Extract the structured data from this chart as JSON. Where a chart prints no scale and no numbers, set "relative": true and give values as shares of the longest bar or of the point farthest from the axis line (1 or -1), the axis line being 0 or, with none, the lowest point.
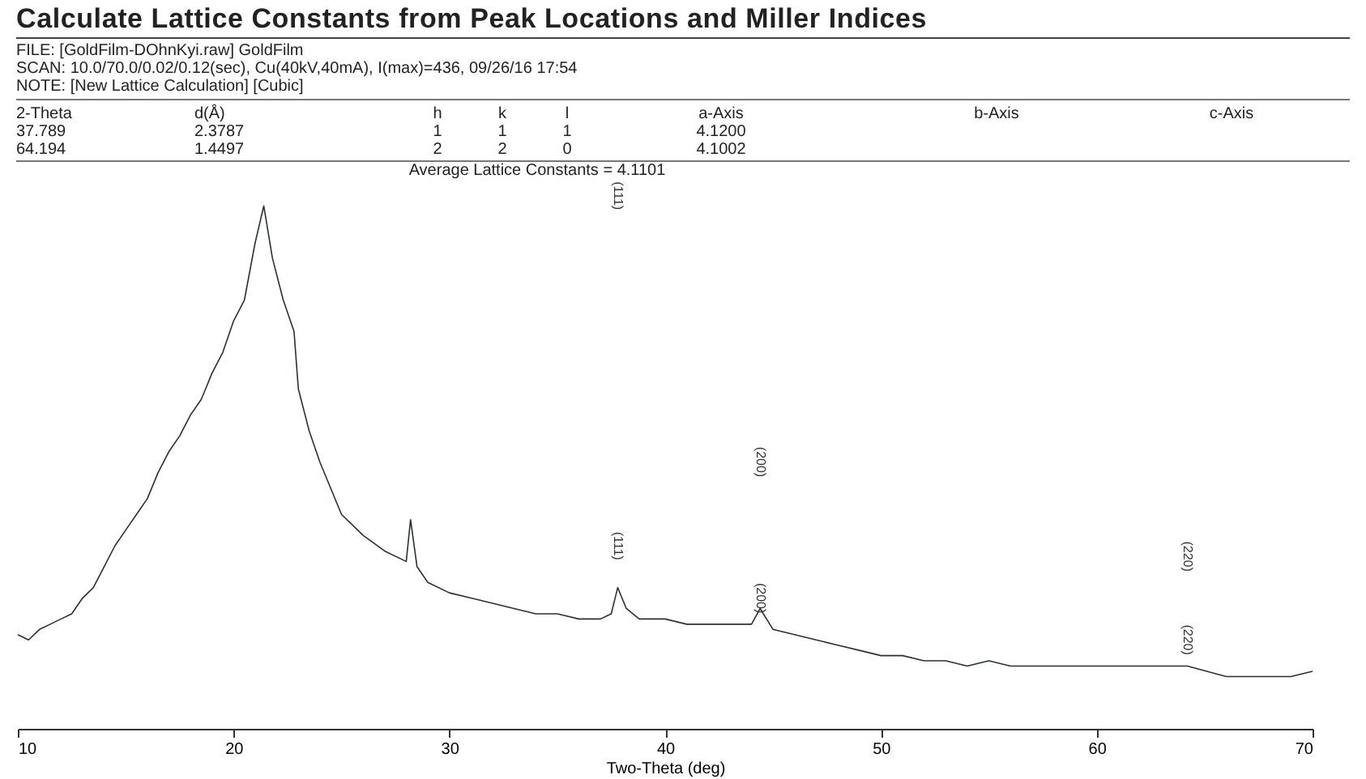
{
  "chart_data": {
    "type": "line",
    "title": "Calculate Lattice Constants from Peak Locations and Miller Indices",
    "xlabel": "Two-Theta (deg)",
    "relative": true,
    "xlim": [
      10,
      70
    ],
    "xticks": [
      10,
      20,
      30,
      40,
      50,
      60,
      70
    ],
    "grid": false,
    "marker": "none",
    "line_style": "solid",
    "annotations": [
      "FILE:  [GoldFilm-DOhnKyi.raw] GoldFilm",
      "SCAN:  10.0/70.0/0.02/0.12(sec), Cu(40kV,40mA), I(max)=436, 09/26/16 17:54",
      "NOTE:  [New Lattice Calculation] [Cubic]",
      "2-Theta",
      "d(Å)",
      "h",
      "k",
      "l",
      "a-Axis",
      "b-Axis",
      "c-Axis",
      "37.789",
      "2.3787",
      "1",
      "1",
      "1",
      "4.1200",
      "64.194",
      "1.4497",
      "2",
      "2",
      "0",
      "4.1002",
      "Average Lattice Constants =  4.1101",
      "(111)",
      "(200)",
      "(220)",
      "(111)",
      "(200)",
      "(220)"
    ],
    "series": [
      {
        "color": "#2a2f38",
        "x": [
          10,
          10.5,
          11,
          11.5,
          12,
          12.5,
          13,
          13.5,
          14,
          14.5,
          15,
          15.5,
          16,
          16.5,
          17,
          17.5,
          18,
          18.5,
          19,
          19.5,
          20,
          20.5,
          21,
          21.4,
          21.8,
          22.3,
          22.8,
          23,
          23.5,
          24,
          24.5,
          25,
          25.5,
          26,
          27,
          28,
          28.2,
          28.5,
          29,
          30,
          31,
          32,
          33,
          34,
          35,
          36,
          37,
          37.5,
          37.8,
          38.2,
          38.8,
          40,
          41,
          42,
          43,
          44,
          44.4,
          45,
          46,
          47,
          48,
          49,
          50,
          51,
          52,
          53,
          54,
          55,
          56,
          58,
          60,
          62,
          64.2,
          66,
          67,
          68,
          69,
          70
        ],
        "values": [
          0.18,
          0.17,
          0.19,
          0.2,
          0.21,
          0.22,
          0.25,
          0.27,
          0.31,
          0.35,
          0.38,
          0.41,
          0.44,
          0.49,
          0.53,
          0.56,
          0.6,
          0.63,
          0.68,
          0.72,
          0.78,
          0.82,
          0.93,
          1.0,
          0.9,
          0.82,
          0.76,
          0.65,
          0.57,
          0.51,
          0.46,
          0.41,
          0.39,
          0.37,
          0.34,
          0.32,
          0.4,
          0.31,
          0.28,
          0.26,
          0.25,
          0.24,
          0.23,
          0.22,
          0.22,
          0.21,
          0.21,
          0.22,
          0.27,
          0.23,
          0.21,
          0.21,
          0.2,
          0.2,
          0.2,
          0.2,
          0.23,
          0.19,
          0.18,
          0.17,
          0.16,
          0.15,
          0.14,
          0.14,
          0.13,
          0.13,
          0.12,
          0.13,
          0.12,
          0.12,
          0.12,
          0.12,
          0.12,
          0.1,
          0.1,
          0.1,
          0.1,
          0.11
        ]
      }
    ]
  }
}
